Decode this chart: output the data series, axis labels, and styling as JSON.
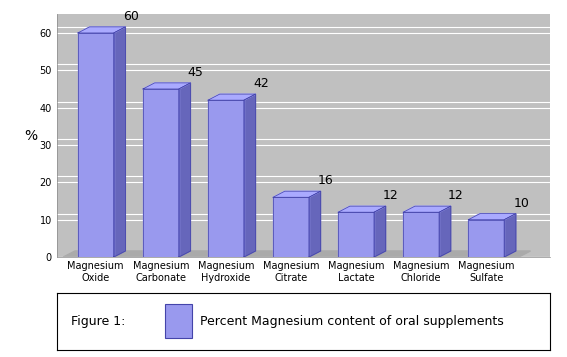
{
  "categories": [
    "Magnesium\nOxide",
    "Magnesium\nCarbonate",
    "Magnesium\nHydroxide",
    "Magnesium\nCitrate",
    "Magnesium\nLactate",
    "Magnesium\nChloride",
    "Magnesium\nSulfate"
  ],
  "values": [
    60,
    45,
    42,
    16,
    12,
    12,
    10
  ],
  "bar_color_face": "#9999ee",
  "bar_color_side": "#6666bb",
  "bar_color_top": "#aaaaff",
  "bar_color_edge": "#4444aa",
  "bar_width": 0.55,
  "bar_depth": 0.18,
  "ylabel": "%",
  "ylim": [
    0,
    65
  ],
  "yticks": [
    0,
    10,
    20,
    30,
    40,
    50,
    60
  ],
  "plot_bg_color": "#c0c0c0",
  "wall_color": "#d0d0d0",
  "floor_color": "#b0b0b0",
  "grid_color": "#ffffff",
  "legend_text": "Percent Magnesium content of oral supplements",
  "legend_label": "Figure 1:",
  "tick_fontsize": 7,
  "ylabel_fontsize": 10,
  "value_fontsize": 9,
  "legend_fontsize": 9
}
